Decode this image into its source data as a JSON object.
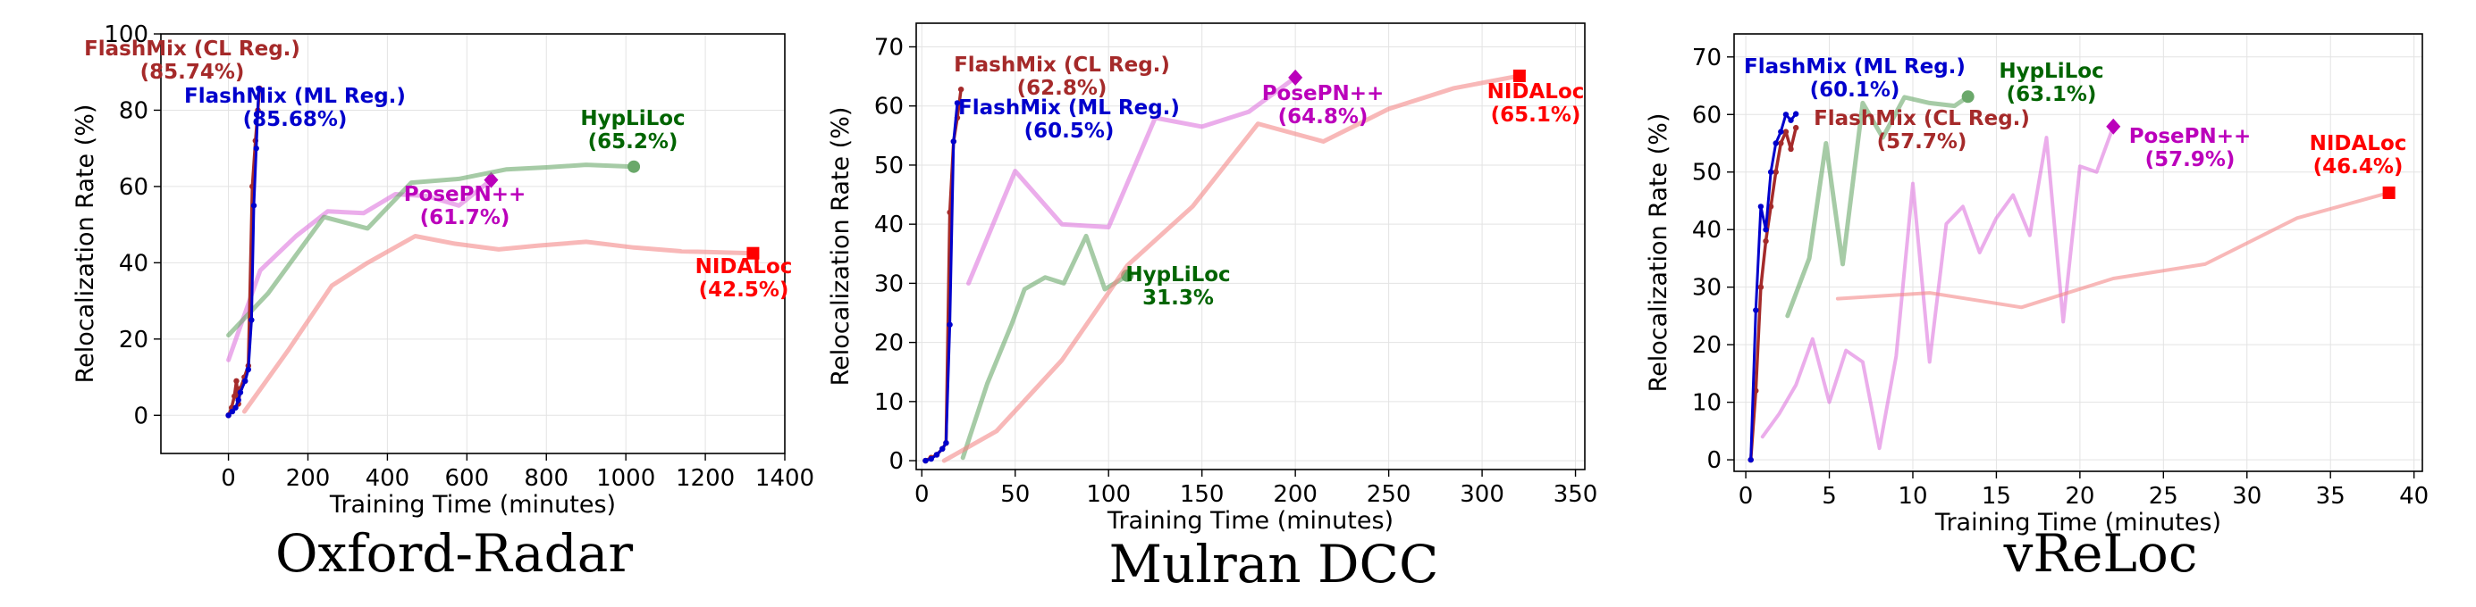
{
  "chart_data": [
    {
      "type": "line",
      "title": "Oxford-Radar",
      "xlabel": "Training Time (minutes)",
      "ylabel": "Relocalization Rate (%)",
      "xlim": [
        -170,
        1400
      ],
      "ylim": [
        -10,
        100
      ],
      "xticks": [
        0,
        200,
        400,
        600,
        800,
        1000,
        1200,
        1400
      ],
      "yticks": [
        0,
        20,
        40,
        60,
        80,
        100
      ],
      "grid": true,
      "series": [
        {
          "name": "FlashMix (CL Reg.)",
          "color": "#a52a2a",
          "alpha": 1.0,
          "width": 3.5,
          "markers": true,
          "x": [
            0,
            8,
            15,
            20,
            25,
            30,
            40,
            50,
            60,
            68,
            74,
            78
          ],
          "y": [
            0,
            2,
            5,
            9,
            3,
            7,
            10,
            13,
            60,
            72,
            80,
            85.74
          ],
          "end": {
            "label": "FlashMix (CL Reg.)",
            "value": "(85.74%)"
          }
        },
        {
          "name": "FlashMix (ML Reg.)",
          "color": "#0000cc",
          "alpha": 1.0,
          "width": 3,
          "markers": true,
          "x": [
            0,
            10,
            18,
            25,
            30,
            42,
            50,
            58,
            64,
            70,
            76
          ],
          "y": [
            0,
            1,
            2,
            4,
            6,
            9,
            12,
            25,
            55,
            70,
            85.68
          ],
          "end": {
            "label": "FlashMix (ML Reg.)",
            "value": "(85.68%)"
          }
        },
        {
          "name": "PosePN++",
          "color": "#dd77dd",
          "alpha": 0.6,
          "width": 5,
          "x": [
            0,
            80,
            170,
            250,
            340,
            420,
            500,
            580,
            661
          ],
          "y": [
            14.5,
            38,
            47,
            53.5,
            53,
            58,
            57.5,
            55,
            61.7
          ],
          "end": {
            "label": "PosePN++",
            "value": "(61.7%)",
            "marker": "diamond"
          }
        },
        {
          "name": "HypLiLoc",
          "color": "#6aa86a",
          "alpha": 0.6,
          "width": 5,
          "x": [
            0,
            100,
            240,
            350,
            460,
            580,
            700,
            800,
            900,
            1020
          ],
          "y": [
            21,
            32,
            52,
            49,
            61,
            62,
            64.5,
            65,
            65.7,
            65.2
          ],
          "end": {
            "label": "HypLiLoc",
            "value": "(65.2%)",
            "marker": "circle"
          }
        },
        {
          "name": "NIDALoc",
          "color": "#f48888",
          "alpha": 0.6,
          "width": 5,
          "x": [
            40,
            150,
            260,
            350,
            470,
            570,
            680,
            780,
            900,
            1020,
            1140,
            1320
          ],
          "y": [
            1,
            17,
            34,
            40,
            47,
            45,
            43.5,
            44.5,
            45.5,
            44,
            43,
            42.5
          ],
          "end": {
            "label": "NIDALoc",
            "value": "(42.5%)",
            "marker": "square"
          }
        }
      ]
    },
    {
      "type": "line",
      "title": "Mulran DCC",
      "xlabel": "Training Time (minutes)",
      "ylabel": "Relocalization Rate (%)",
      "xlim": [
        -3,
        355
      ],
      "ylim": [
        -1.5,
        74
      ],
      "xticks": [
        0,
        50,
        100,
        150,
        200,
        250,
        300,
        350
      ],
      "yticks": [
        0,
        10,
        20,
        30,
        40,
        50,
        60,
        70
      ],
      "grid": true,
      "series": [
        {
          "name": "FlashMix (CL Reg.)",
          "color": "#a52a2a",
          "alpha": 1.0,
          "width": 3.5,
          "markers": true,
          "x": [
            2,
            5,
            8,
            11,
            13,
            15,
            17,
            19,
            21
          ],
          "y": [
            0,
            0.5,
            1,
            2,
            3,
            42,
            54,
            58,
            62.8
          ],
          "end": {
            "label": "FlashMix (CL Reg.)",
            "value": "(62.8%)"
          }
        },
        {
          "name": "FlashMix (ML Reg.)",
          "color": "#0000cc",
          "alpha": 1.0,
          "width": 3,
          "markers": true,
          "x": [
            2,
            5,
            8,
            11,
            13,
            15,
            17,
            19
          ],
          "y": [
            0,
            0.3,
            1,
            2,
            3,
            23,
            54,
            60.5
          ],
          "end": {
            "label": "FlashMix (ML Reg.)",
            "value": "(60.5%)"
          }
        },
        {
          "name": "PosePN++",
          "color": "#dd77dd",
          "alpha": 0.6,
          "width": 5,
          "x": [
            25,
            50,
            75,
            100,
            125,
            150,
            175,
            200
          ],
          "y": [
            30,
            49,
            40,
            39.5,
            58,
            56.5,
            59,
            64.8
          ],
          "end": {
            "label": "PosePN++",
            "value": "(64.8%)",
            "marker": "diamond"
          }
        },
        {
          "name": "HypLiLoc",
          "color": "#6aa86a",
          "alpha": 0.6,
          "width": 5,
          "x": [
            22,
            35,
            48,
            55,
            66,
            76,
            88,
            98,
            110
          ],
          "y": [
            0.5,
            13,
            23,
            29,
            31,
            30,
            38,
            29,
            31.3
          ],
          "end": {
            "label": "HypLiLoc",
            "value": "31.3%",
            "marker": "circle"
          }
        },
        {
          "name": "NIDALoc",
          "color": "#f48888",
          "alpha": 0.6,
          "width": 5,
          "x": [
            12,
            40,
            75,
            110,
            145,
            180,
            215,
            250,
            285,
            320
          ],
          "y": [
            0,
            5,
            17,
            33,
            43,
            57,
            54,
            59.5,
            63,
            65.1
          ],
          "end": {
            "label": "NIDALoc",
            "value": "(65.1%)",
            "marker": "square"
          }
        }
      ]
    },
    {
      "type": "line",
      "title": "vReLoc",
      "xlabel": "Training Time (minutes)",
      "ylabel": "Relocalization Rate (%)",
      "xlim": [
        -0.7,
        40.5
      ],
      "ylim": [
        -2,
        74
      ],
      "xticks": [
        0,
        5,
        10,
        15,
        20,
        25,
        30,
        35,
        40
      ],
      "yticks": [
        0,
        10,
        20,
        30,
        40,
        50,
        60,
        70
      ],
      "grid": true,
      "series": [
        {
          "name": "FlashMix (CL Reg.)",
          "color": "#a52a2a",
          "alpha": 1.0,
          "width": 3.5,
          "markers": true,
          "x": [
            0.3,
            0.6,
            0.9,
            1.2,
            1.5,
            1.8,
            2.1,
            2.4,
            2.7,
            3.0
          ],
          "y": [
            0,
            12,
            30,
            38,
            44,
            50,
            55,
            57,
            54,
            57.7
          ],
          "end": {
            "label": "FlashMix (CL Reg.)",
            "value": "(57.7%)"
          }
        },
        {
          "name": "FlashMix (ML Reg.)",
          "color": "#0000cc",
          "alpha": 1.0,
          "width": 3,
          "markers": true,
          "x": [
            0.3,
            0.6,
            0.9,
            1.2,
            1.5,
            1.8,
            2.1,
            2.4,
            2.7,
            3.0
          ],
          "y": [
            0,
            26,
            44,
            40,
            50,
            55,
            57,
            60,
            59,
            60.1
          ],
          "end": {
            "label": "FlashMix (ML Reg.)",
            "value": "(60.1%)"
          }
        },
        {
          "name": "PosePN++",
          "color": "#dd77dd",
          "alpha": 0.6,
          "width": 4,
          "x": [
            1,
            2,
            3,
            4,
            5,
            6,
            7,
            8,
            9,
            10,
            11,
            12,
            13,
            14,
            15,
            16,
            17,
            18,
            19,
            20,
            21,
            22
          ],
          "y": [
            4,
            8,
            13,
            21,
            10,
            19,
            17,
            2,
            18,
            48,
            17,
            41,
            44,
            36,
            42,
            46,
            39,
            56,
            24,
            51,
            50,
            57.9
          ],
          "end": {
            "label": "PosePN++",
            "value": "(57.9%)",
            "marker": "diamond"
          }
        },
        {
          "name": "HypLiLoc",
          "color": "#6aa86a",
          "alpha": 0.6,
          "width": 5,
          "x": [
            2.5,
            3.8,
            4.8,
            5.8,
            7.0,
            8.2,
            9.5,
            11,
            12.5,
            13.3
          ],
          "y": [
            25,
            35,
            55,
            34,
            62,
            56,
            63,
            62,
            61.5,
            63.1
          ],
          "end": {
            "label": "HypLiLoc",
            "value": "(63.1%)",
            "marker": "circle"
          }
        },
        {
          "name": "NIDALoc",
          "color": "#f48888",
          "alpha": 0.6,
          "width": 4,
          "x": [
            5.5,
            11,
            16.5,
            22,
            27.5,
            33,
            38.5
          ],
          "y": [
            28,
            29,
            26.5,
            31.5,
            34,
            42,
            46.4
          ],
          "end": {
            "label": "NIDALoc",
            "value": "(46.4%)",
            "marker": "square"
          }
        }
      ]
    }
  ]
}
